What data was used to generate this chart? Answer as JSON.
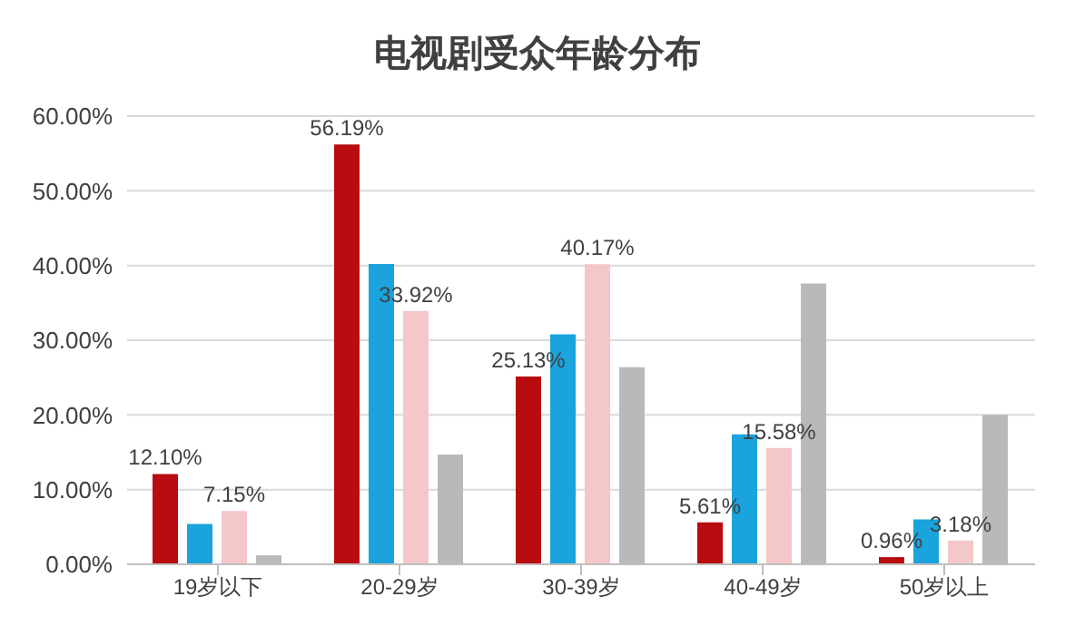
{
  "chart_data": {
    "type": "bar",
    "title": "电视剧受众年龄分布",
    "categories": [
      "19岁以下",
      "20-29岁",
      "30-39岁",
      "40-49岁",
      "50岁以上"
    ],
    "series": [
      {
        "color": "#b80c10",
        "values": [
          12.1,
          56.19,
          25.13,
          5.61,
          0.96
        ],
        "value_labels": [
          "12.10%",
          "56.19%",
          "25.13%",
          "5.61%",
          "0.96%"
        ]
      },
      {
        "color": "#1aa3dc",
        "values": [
          5.4,
          40.2,
          30.8,
          17.4,
          6.0
        ]
      },
      {
        "color": "#f4c7c8",
        "values": [
          7.15,
          33.92,
          40.17,
          15.58,
          3.18
        ],
        "value_labels": [
          "7.15%",
          "33.92%",
          "40.17%",
          "15.58%",
          "3.18%"
        ]
      },
      {
        "color": "#b9b9bb",
        "values": [
          1.2,
          14.7,
          26.4,
          37.6,
          20.0
        ]
      }
    ],
    "ylim": [
      0,
      60
    ],
    "yticks": [
      {
        "value": 0,
        "label": "0.00%"
      },
      {
        "value": 10,
        "label": "10.00%"
      },
      {
        "value": 20,
        "label": "20.00%"
      },
      {
        "value": 30,
        "label": "30.00%"
      },
      {
        "value": 40,
        "label": "40.00%"
      },
      {
        "value": 50,
        "label": "50.00%"
      },
      {
        "value": 60,
        "label": "60.00%"
      }
    ],
    "grid": "y"
  }
}
